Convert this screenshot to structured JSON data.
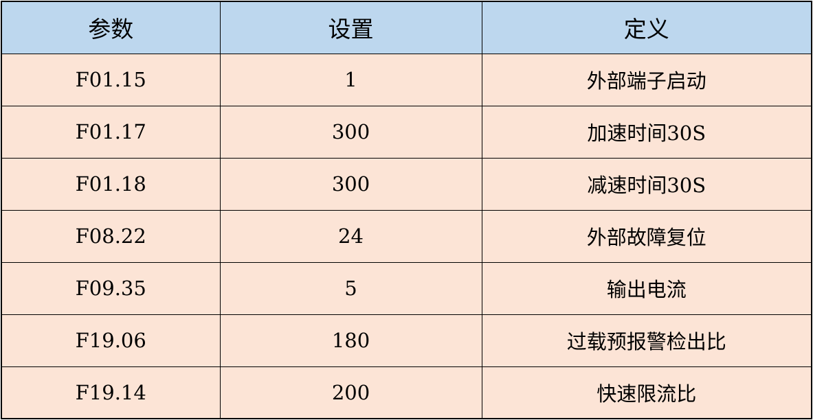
{
  "colors": {
    "header_bg": "#BDD7EE",
    "row_bg": "#FCE4D6"
  },
  "headers": [
    "参数",
    "设置",
    "定义"
  ],
  "rows": [
    [
      "F01.15",
      "1",
      "外部端子启动"
    ],
    [
      "F01.17",
      "300",
      "加速时间30S"
    ],
    [
      "F01.18",
      "300",
      "减速时间30S"
    ],
    [
      "F08.22",
      "24",
      "外部故障复位"
    ],
    [
      "F09.35",
      "5",
      "输出电流"
    ],
    [
      "F19.06",
      "180",
      "过载预报警检出比"
    ],
    [
      "F19.14",
      "200",
      "快速限流比"
    ]
  ]
}
